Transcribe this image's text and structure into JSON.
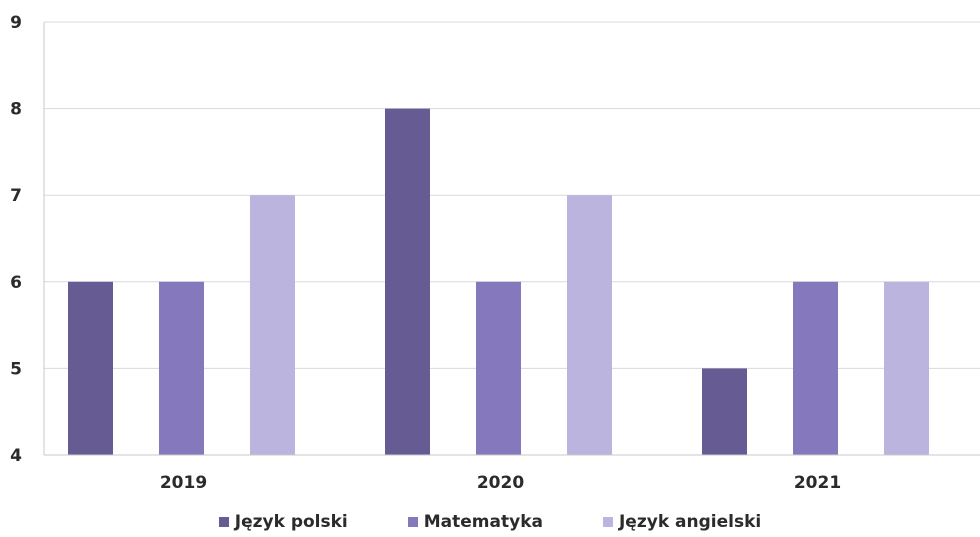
{
  "chart_data": {
    "type": "bar",
    "categories": [
      "2019",
      "2020",
      "2021"
    ],
    "series": [
      {
        "name": "Język polski",
        "values": [
          6,
          8,
          5
        ],
        "color": "#665b93"
      },
      {
        "name": "Matematyka",
        "values": [
          6,
          6,
          6
        ],
        "color": "#8678bc"
      },
      {
        "name": "Język angielski",
        "values": [
          7,
          7,
          6
        ],
        "color": "#bbb4df"
      }
    ],
    "yticks": [
      "4",
      "5",
      "6",
      "7",
      "8",
      "9"
    ],
    "ylim": [
      4,
      9
    ],
    "grid": true,
    "legend_position": "bottom"
  }
}
